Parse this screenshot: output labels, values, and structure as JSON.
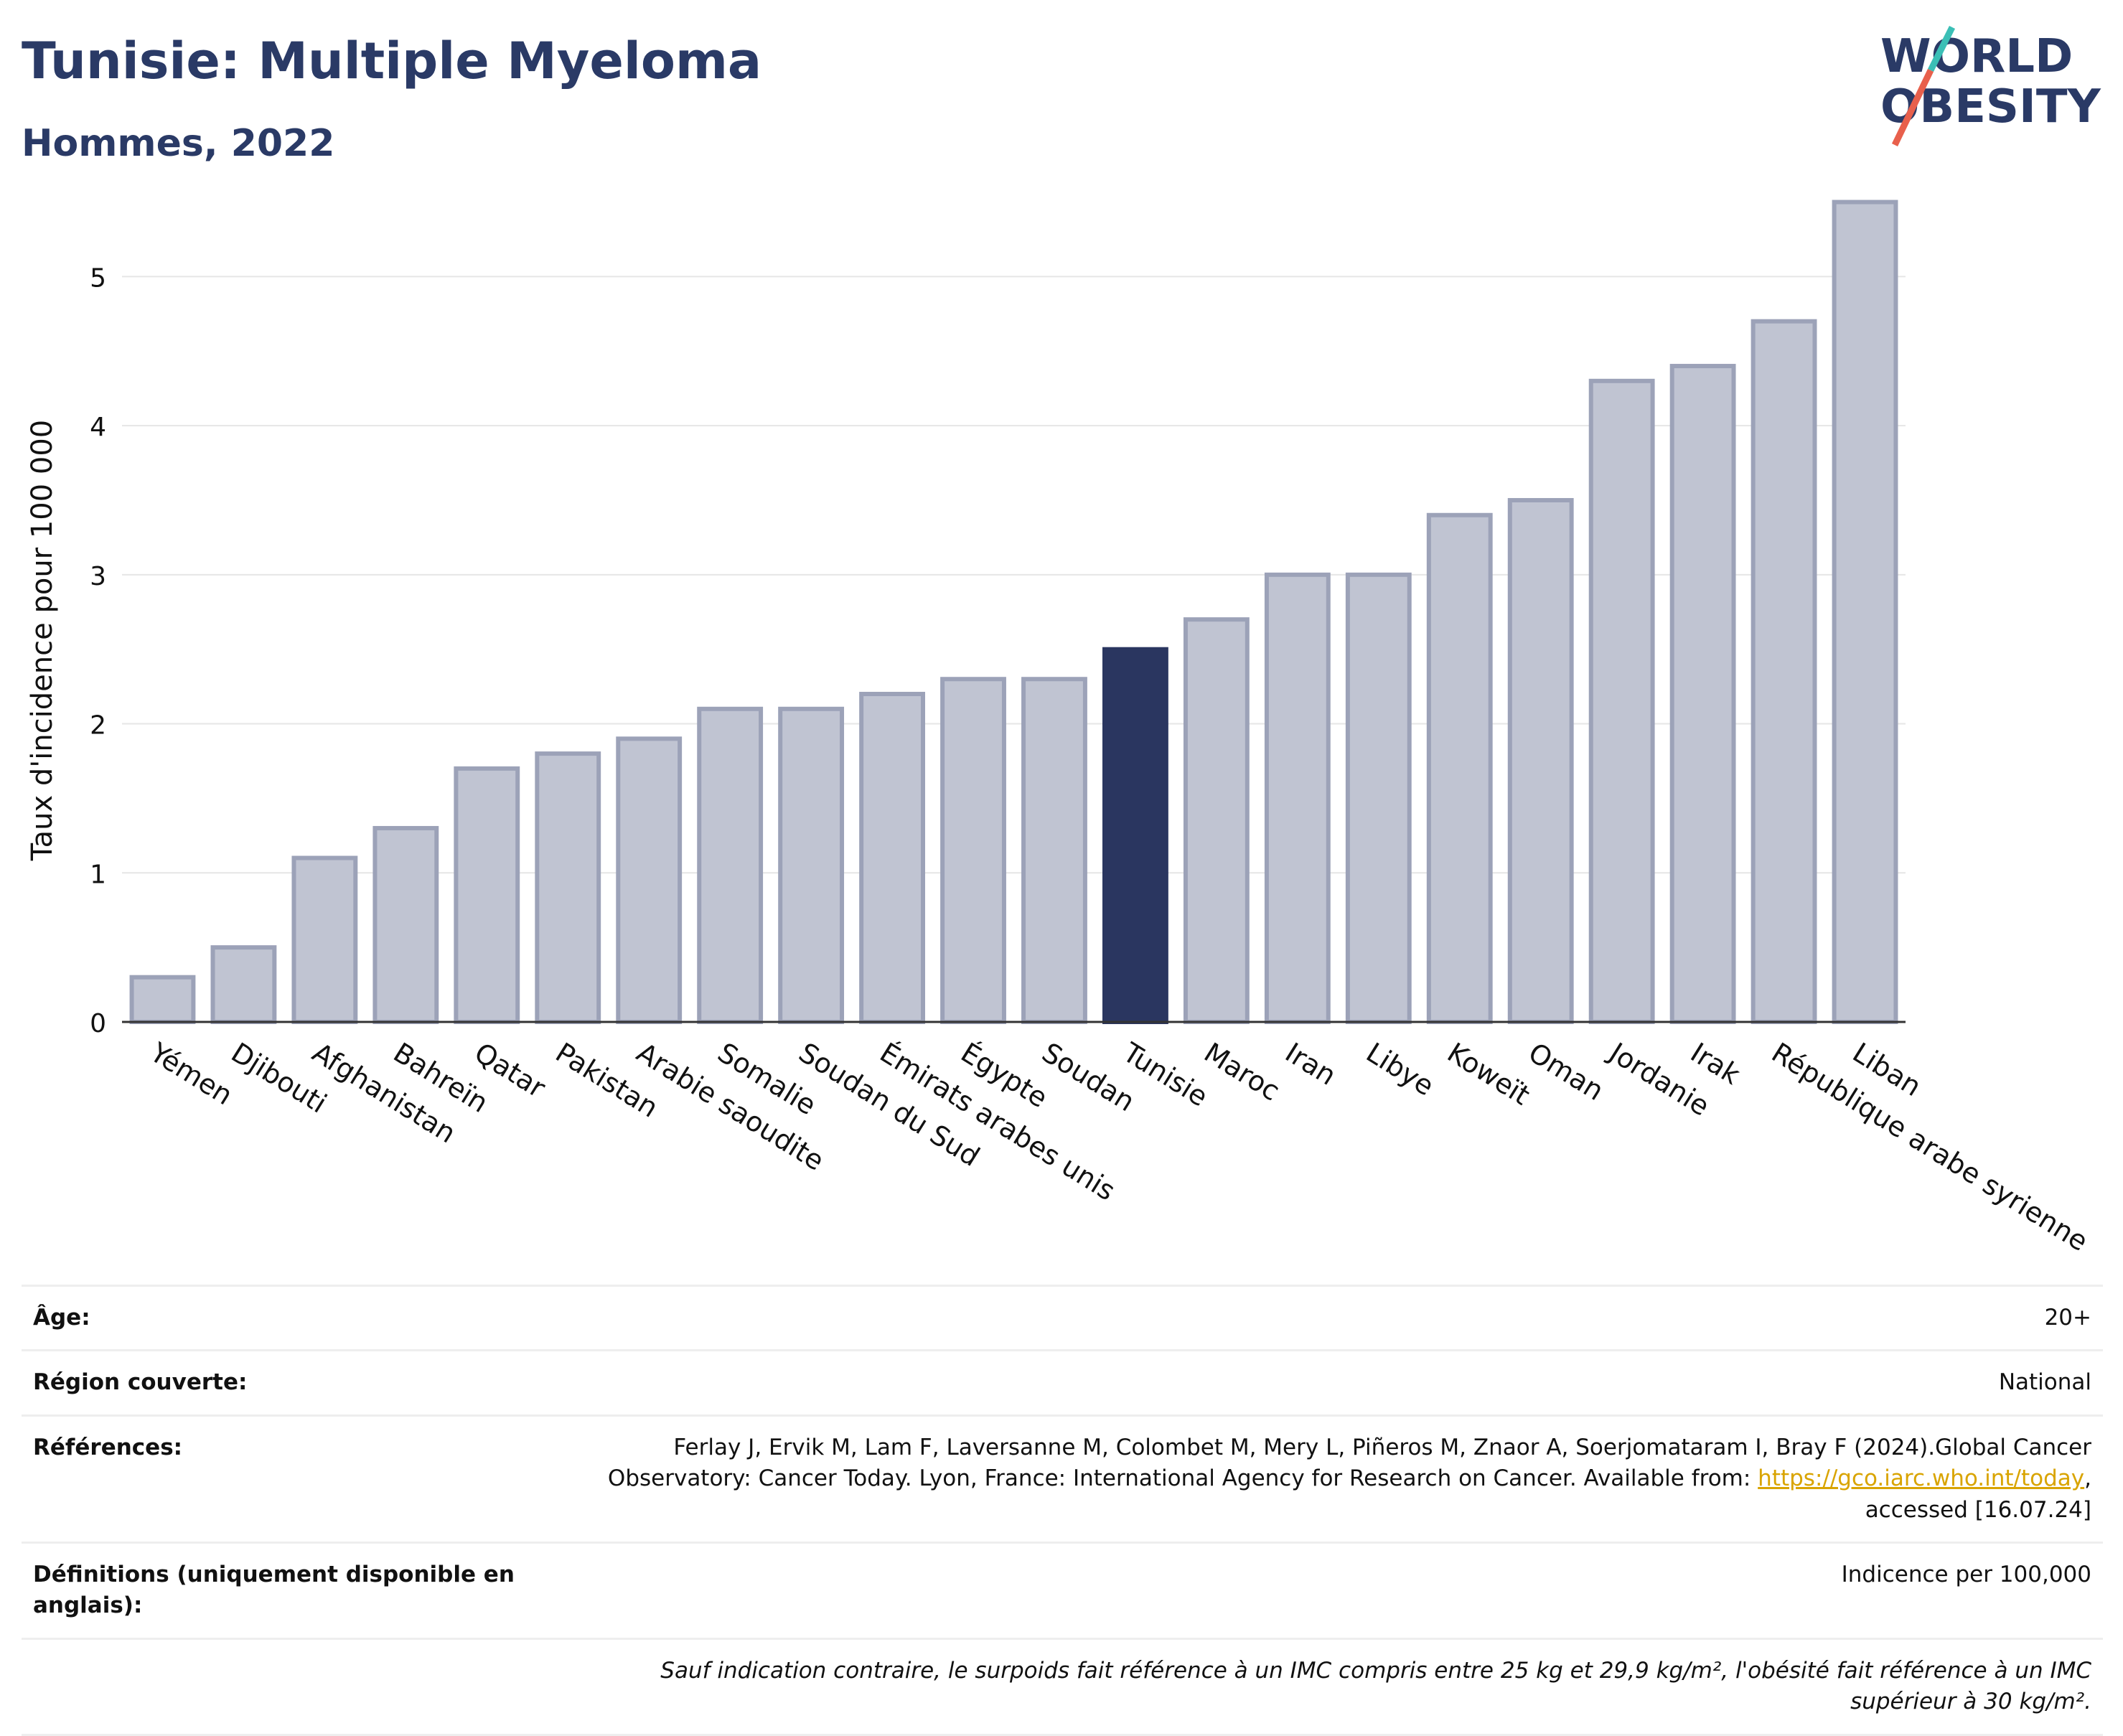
{
  "header": {
    "title": "Tunisie: Multiple Myeloma",
    "subtitle": "Hommes, 2022",
    "logo_line1": "WORLD",
    "logo_line2": "OBESITY"
  },
  "colors": {
    "title": "#2a3a66",
    "bar": "#c0c4d2",
    "bar_stroke": "#9ca2b8",
    "highlight": "#2a3660",
    "logo_teal": "#3bbfb6",
    "logo_red": "#e8604c"
  },
  "chart_data": {
    "type": "bar",
    "ylabel": "Taux d'incidence pour 100 000",
    "ylim": [
      0,
      5.7
    ],
    "yticks": [
      0,
      1,
      2,
      3,
      4,
      5
    ],
    "grid": true,
    "highlight": "Tunisie",
    "categories": [
      "Yémen",
      "Djibouti",
      "Afghanistan",
      "Bahreïn",
      "Qatar",
      "Pakistan",
      "Arabie saoudite",
      "Somalie",
      "Soudan du Sud",
      "Émirats arabes unis",
      "Égypte",
      "Soudan",
      "Tunisie",
      "Maroc",
      "Iran",
      "Libye",
      "Koweït",
      "Oman",
      "Jordanie",
      "Irak",
      "République arabe syrienne",
      "Liban"
    ],
    "values": [
      0.3,
      0.5,
      1.1,
      1.3,
      1.7,
      1.8,
      1.9,
      2.1,
      2.1,
      2.2,
      2.3,
      2.3,
      2.5,
      2.7,
      3.0,
      3.0,
      3.4,
      3.5,
      4.3,
      4.4,
      4.7,
      5.5
    ]
  },
  "meta": {
    "age_label": "Âge:",
    "age_value": "20+",
    "region_label": "Région couverte:",
    "region_value": "National",
    "ref_label": "Références:",
    "ref_text": "Ferlay J, Ervik M, Lam F, Laversanne M, Colombet M, Mery L, Piñeros M, Znaor A, Soerjomataram I, Bray F (2024).Global Cancer Observatory: Cancer Today. Lyon, France: International Agency for Research on Cancer. Available from:",
    "ref_link": "https://gco.iarc.who.int/today",
    "ref_tail": ", accessed [16.07.24]",
    "def_label": "Définitions (uniquement disponible en anglais):",
    "def_value": "Indicence per 100,000",
    "note": "Sauf indication contraire, le surpoids fait référence à un IMC compris entre 25 kg et 29,9 kg/m², l'obésité fait référence à un IMC supérieur à 30 kg/m²."
  }
}
